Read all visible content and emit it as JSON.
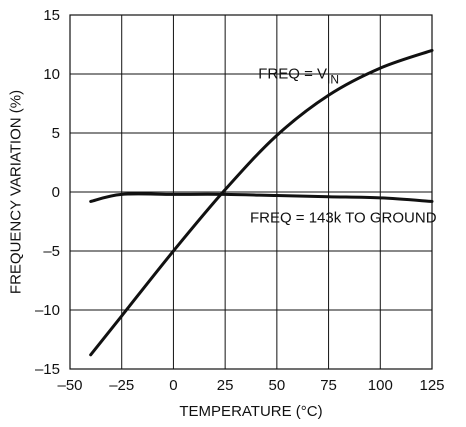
{
  "chart_data": {
    "type": "line",
    "title": "",
    "xlabel": "TEMPERATURE (°C)",
    "ylabel": "FREQUENCY VARIATION (%)",
    "xlim": [
      -50,
      125
    ],
    "ylim": [
      -15,
      15
    ],
    "xticks": [
      -50,
      -25,
      0,
      25,
      50,
      75,
      100,
      125
    ],
    "yticks": [
      -15,
      -10,
      -5,
      0,
      5,
      10,
      15
    ],
    "x_tick_labels": [
      "–50",
      "–25",
      "0",
      "25",
      "50",
      "75",
      "100",
      "125"
    ],
    "y_tick_labels": [
      "–15",
      "–10",
      "–5",
      "0",
      "5",
      "10",
      "15"
    ],
    "grid": true,
    "legend": "none",
    "series": [
      {
        "label_main": "FREQ = V",
        "label_sub": "IN",
        "x": [
          -40,
          -25,
          0,
          25,
          50,
          75,
          100,
          125
        ],
        "y": [
          -13.8,
          -10.5,
          -5,
          0.2,
          4.8,
          8.2,
          10.5,
          12
        ]
      },
      {
        "label_main": "FREQ = 143k TO GROUND",
        "x": [
          -40,
          -25,
          0,
          25,
          50,
          75,
          100,
          125
        ],
        "y": [
          -0.8,
          -0.2,
          -0.2,
          -0.2,
          -0.3,
          -0.4,
          -0.5,
          -0.8
        ]
      }
    ]
  }
}
